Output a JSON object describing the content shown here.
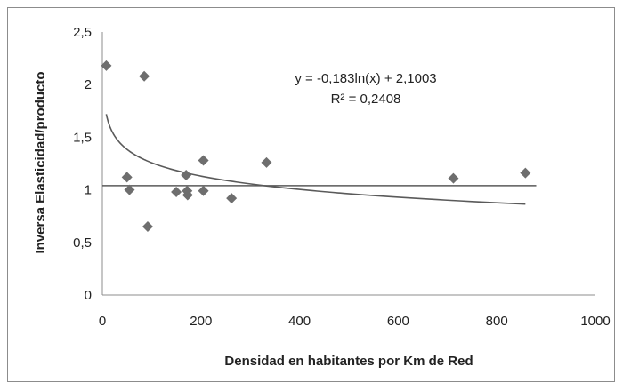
{
  "chart_data": {
    "type": "scatter",
    "title": "",
    "xlabel": "Densidad en habitantes por Km de Red",
    "ylabel": "Inversa Elasticidad/producto",
    "xlim": [
      0,
      1000
    ],
    "ylim": [
      0,
      2.5
    ],
    "x_ticks": [
      "0",
      "200",
      "400",
      "600",
      "800",
      "1000"
    ],
    "y_ticks": [
      "0",
      "0,5",
      "1",
      "1,5",
      "2",
      "2,5"
    ],
    "grid": false,
    "legend": "none",
    "series": [
      {
        "points": [
          {
            "x": 8,
            "y": 2.18
          },
          {
            "x": 85,
            "y": 2.08
          },
          {
            "x": 50,
            "y": 1.12
          },
          {
            "x": 55,
            "y": 1.0
          },
          {
            "x": 92,
            "y": 0.65
          },
          {
            "x": 150,
            "y": 0.98
          },
          {
            "x": 170,
            "y": 1.14
          },
          {
            "x": 172,
            "y": 0.99
          },
          {
            "x": 173,
            "y": 0.95
          },
          {
            "x": 205,
            "y": 1.28
          },
          {
            "x": 205,
            "y": 0.99
          },
          {
            "x": 262,
            "y": 0.92
          },
          {
            "x": 333,
            "y": 1.26
          },
          {
            "x": 712,
            "y": 1.11
          },
          {
            "x": 858,
            "y": 1.16
          }
        ],
        "color": "#6e6e6e",
        "marker": "diamond"
      }
    ],
    "trendline": {
      "type": "logarithmic",
      "a": -0.183,
      "b": 2.1003,
      "x_range": [
        8,
        858
      ],
      "equation": "y = -0,183ln(x) + 2,1003",
      "r2_label": "R² = 0,2408",
      "color": "#5a5a5a"
    },
    "reference_line": {
      "y": 1.04,
      "x_range": [
        0,
        880
      ],
      "color": "#5a5a5a"
    }
  }
}
